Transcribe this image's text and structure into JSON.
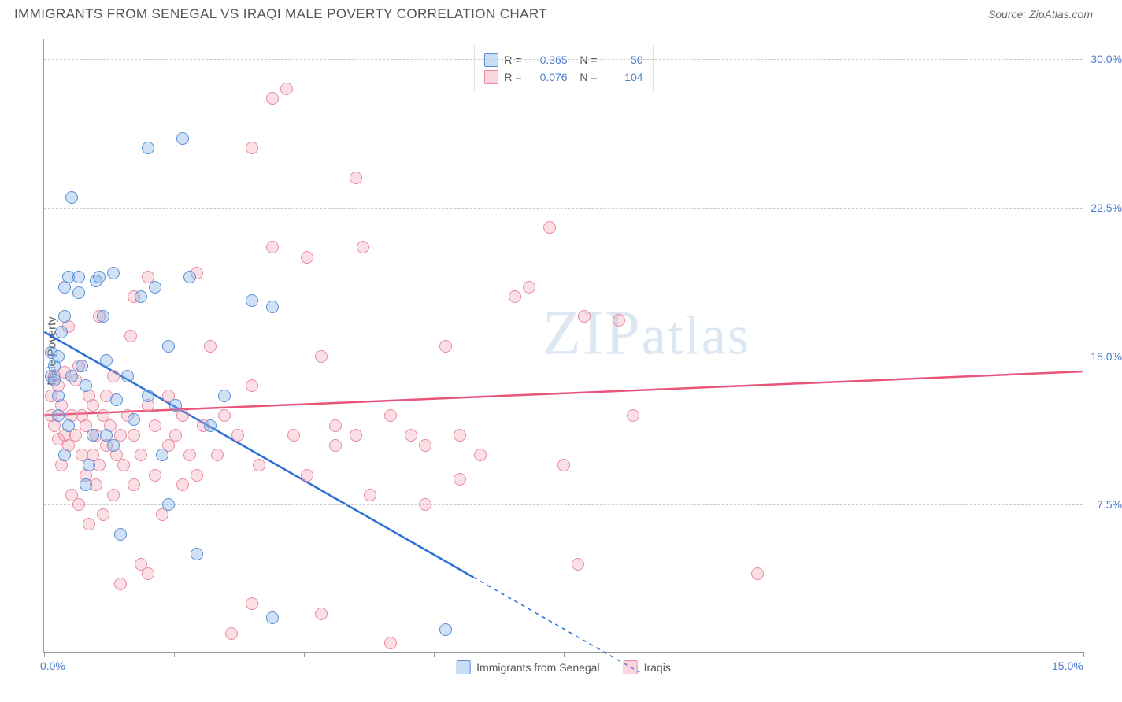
{
  "title": "IMMIGRANTS FROM SENEGAL VS IRAQI MALE POVERTY CORRELATION CHART",
  "source": "Source: ZipAtlas.com",
  "yaxis_title": "Male Poverty",
  "watermark": "ZIPatlas",
  "chart": {
    "type": "scatter",
    "xlim": [
      0,
      15
    ],
    "ylim": [
      0,
      31
    ],
    "yticks": [
      7.5,
      15.0,
      22.5,
      30.0
    ],
    "ytick_labels": [
      "7.5%",
      "15.0%",
      "22.5%",
      "30.0%"
    ],
    "xtick_positions": [
      0,
      15
    ],
    "xtick_labels": [
      "0.0%",
      "15.0%"
    ],
    "xtick_marks": [
      0,
      1.875,
      3.75,
      5.625,
      7.5,
      9.375,
      11.25,
      13.125,
      15
    ],
    "grid_color": "#cccccc",
    "background": "#ffffff",
    "series": [
      {
        "name": "Immigrants from Senegal",
        "color_fill": "rgba(120,170,230,0.35)",
        "color_stroke": "#5a8fd6",
        "line_color": "#2c6fd6",
        "R": "-0.365",
        "N": "50",
        "trend": {
          "x1": 0,
          "y1": 16.2,
          "x2": 6.2,
          "y2": 3.8,
          "x2_dash": 8.6,
          "y2_dash": -1
        },
        "points": [
          [
            0.1,
            15.2
          ],
          [
            0.1,
            14.0
          ],
          [
            0.15,
            14.5
          ],
          [
            0.15,
            13.8
          ],
          [
            0.2,
            15.0
          ],
          [
            0.2,
            12.0
          ],
          [
            0.2,
            13.0
          ],
          [
            0.25,
            16.2
          ],
          [
            0.3,
            18.5
          ],
          [
            0.3,
            17.0
          ],
          [
            0.35,
            11.5
          ],
          [
            0.35,
            19.0
          ],
          [
            0.4,
            23.0
          ],
          [
            0.4,
            14.0
          ],
          [
            0.5,
            19.0
          ],
          [
            0.5,
            18.2
          ],
          [
            0.55,
            14.5
          ],
          [
            0.6,
            13.5
          ],
          [
            0.65,
            9.5
          ],
          [
            0.7,
            11.0
          ],
          [
            0.75,
            18.8
          ],
          [
            0.8,
            19.0
          ],
          [
            0.85,
            17.0
          ],
          [
            0.9,
            14.8
          ],
          [
            1.0,
            19.2
          ],
          [
            1.05,
            12.8
          ],
          [
            1.1,
            6.0
          ],
          [
            1.2,
            14.0
          ],
          [
            1.3,
            11.8
          ],
          [
            1.4,
            18.0
          ],
          [
            1.5,
            13.0
          ],
          [
            1.6,
            18.5
          ],
          [
            1.7,
            10.0
          ],
          [
            1.8,
            15.5
          ],
          [
            1.9,
            12.5
          ],
          [
            2.0,
            26.0
          ],
          [
            2.1,
            19.0
          ],
          [
            2.2,
            5.0
          ],
          [
            2.4,
            11.5
          ],
          [
            2.6,
            13.0
          ],
          [
            3.0,
            17.8
          ],
          [
            3.3,
            17.5
          ],
          [
            3.3,
            1.8
          ],
          [
            5.8,
            1.2
          ],
          [
            1.5,
            25.5
          ],
          [
            0.6,
            8.5
          ],
          [
            1.0,
            10.5
          ],
          [
            1.8,
            7.5
          ],
          [
            0.3,
            10.0
          ],
          [
            0.9,
            11.0
          ]
        ]
      },
      {
        "name": "Iraqis",
        "color_fill": "rgba(240,150,170,0.3)",
        "color_stroke": "#e88ba2",
        "line_color": "#e8547a",
        "R": "0.076",
        "N": "104",
        "trend": {
          "x1": 0,
          "y1": 12.0,
          "x2": 15,
          "y2": 14.2
        },
        "points": [
          [
            0.1,
            13.0
          ],
          [
            0.1,
            12.0
          ],
          [
            0.15,
            11.5
          ],
          [
            0.15,
            14.0
          ],
          [
            0.2,
            10.8
          ],
          [
            0.2,
            13.5
          ],
          [
            0.25,
            9.5
          ],
          [
            0.25,
            12.5
          ],
          [
            0.3,
            11.0
          ],
          [
            0.3,
            14.2
          ],
          [
            0.35,
            10.5
          ],
          [
            0.35,
            16.5
          ],
          [
            0.4,
            12.0
          ],
          [
            0.4,
            8.0
          ],
          [
            0.45,
            13.8
          ],
          [
            0.45,
            11.0
          ],
          [
            0.5,
            14.5
          ],
          [
            0.5,
            7.5
          ],
          [
            0.55,
            10.0
          ],
          [
            0.55,
            12.0
          ],
          [
            0.6,
            9.0
          ],
          [
            0.6,
            11.5
          ],
          [
            0.65,
            13.0
          ],
          [
            0.65,
            6.5
          ],
          [
            0.7,
            10.0
          ],
          [
            0.7,
            12.5
          ],
          [
            0.75,
            8.5
          ],
          [
            0.75,
            11.0
          ],
          [
            0.8,
            9.5
          ],
          [
            0.8,
            17.0
          ],
          [
            0.85,
            12.0
          ],
          [
            0.85,
            7.0
          ],
          [
            0.9,
            10.5
          ],
          [
            0.9,
            13.0
          ],
          [
            0.95,
            11.5
          ],
          [
            1.0,
            8.0
          ],
          [
            1.0,
            14.0
          ],
          [
            1.05,
            10.0
          ],
          [
            1.1,
            3.5
          ],
          [
            1.1,
            11.0
          ],
          [
            1.15,
            9.5
          ],
          [
            1.2,
            12.0
          ],
          [
            1.25,
            16.0
          ],
          [
            1.3,
            8.5
          ],
          [
            1.3,
            11.0
          ],
          [
            1.4,
            10.0
          ],
          [
            1.4,
            4.5
          ],
          [
            1.5,
            12.5
          ],
          [
            1.5,
            19.0
          ],
          [
            1.6,
            9.0
          ],
          [
            1.6,
            11.5
          ],
          [
            1.7,
            7.0
          ],
          [
            1.8,
            10.5
          ],
          [
            1.8,
            13.0
          ],
          [
            1.9,
            11.0
          ],
          [
            2.0,
            8.5
          ],
          [
            2.0,
            12.0
          ],
          [
            2.1,
            10.0
          ],
          [
            2.2,
            9.0
          ],
          [
            2.2,
            19.2
          ],
          [
            2.3,
            11.5
          ],
          [
            2.4,
            15.5
          ],
          [
            2.5,
            10.0
          ],
          [
            2.6,
            12.0
          ],
          [
            2.8,
            11.0
          ],
          [
            3.0,
            2.5
          ],
          [
            3.0,
            25.5
          ],
          [
            3.1,
            9.5
          ],
          [
            3.3,
            28.0
          ],
          [
            3.3,
            20.5
          ],
          [
            3.5,
            28.5
          ],
          [
            3.6,
            11.0
          ],
          [
            3.8,
            9.0
          ],
          [
            4.0,
            2.0
          ],
          [
            4.0,
            15.0
          ],
          [
            4.2,
            10.5
          ],
          [
            4.5,
            24.0
          ],
          [
            4.5,
            11.0
          ],
          [
            4.6,
            20.5
          ],
          [
            4.7,
            8.0
          ],
          [
            5.0,
            0.5
          ],
          [
            5.0,
            12.0
          ],
          [
            5.3,
            11.0
          ],
          [
            5.5,
            10.5
          ],
          [
            5.8,
            15.5
          ],
          [
            6.0,
            8.8
          ],
          [
            6.0,
            11.0
          ],
          [
            6.3,
            10.0
          ],
          [
            6.8,
            18.0
          ],
          [
            7.0,
            18.5
          ],
          [
            7.3,
            21.5
          ],
          [
            7.5,
            9.5
          ],
          [
            7.7,
            4.5
          ],
          [
            7.8,
            17.0
          ],
          [
            8.3,
            16.8
          ],
          [
            8.5,
            12.0
          ],
          [
            10.3,
            4.0
          ],
          [
            1.3,
            18.0
          ],
          [
            1.5,
            4.0
          ],
          [
            2.7,
            1.0
          ],
          [
            3.0,
            13.5
          ],
          [
            3.8,
            20.0
          ],
          [
            4.2,
            11.5
          ],
          [
            5.5,
            7.5
          ]
        ]
      }
    ]
  },
  "legend_bottom": [
    {
      "label": "Immigrants from Senegal",
      "series": 0
    },
    {
      "label": "Iraqis",
      "series": 1
    }
  ]
}
